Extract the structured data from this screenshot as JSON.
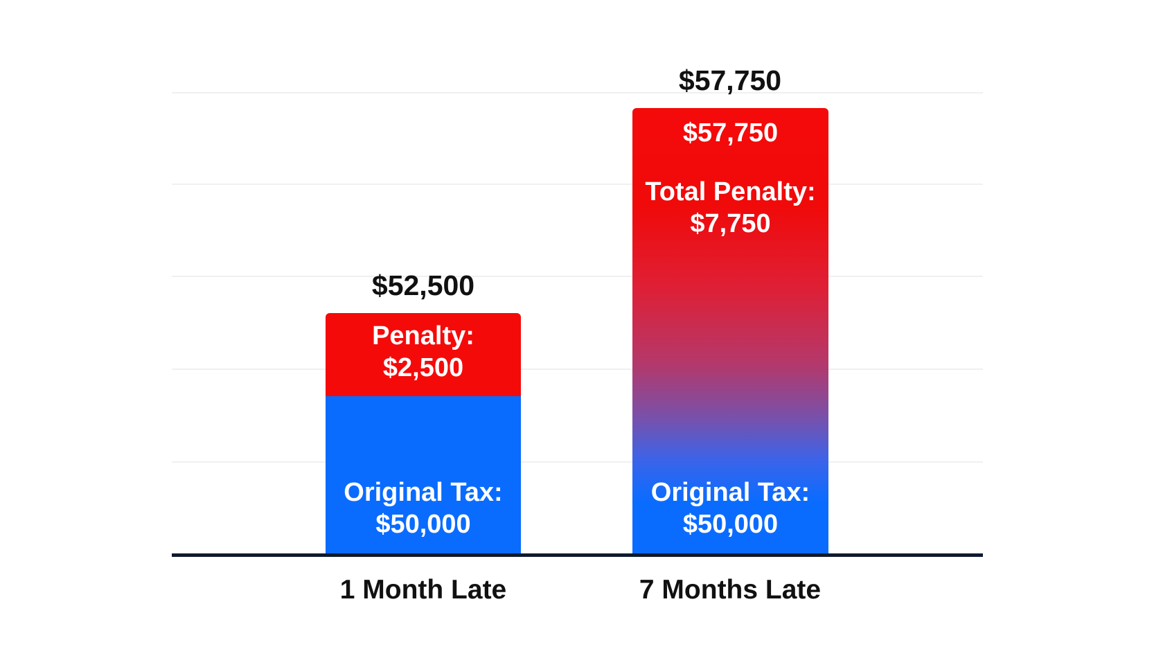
{
  "chart_data": {
    "type": "bar",
    "stacked": true,
    "categories": [
      "1 Month Late",
      "7 Months Late"
    ],
    "totals": [
      "$52,500",
      "$57,750"
    ],
    "bars": [
      {
        "total": 52500,
        "total_label": "$52,500",
        "original_tax_label": "Original Tax:",
        "original_tax_value": "$50,000",
        "original_tax": 50000,
        "penalty_label": "Penalty:",
        "penalty_value": "$2,500",
        "penalty": 2500
      },
      {
        "total": 57750,
        "total_label": "$57,750",
        "inner_total": "$57,750",
        "original_tax_label": "Original Tax:",
        "original_tax_value": "$50,000",
        "original_tax": 50000,
        "penalty_label": "Total Penalty:",
        "penalty_value": "$7,750",
        "penalty": 7750
      }
    ],
    "colors": {
      "original_tax": "#0a6cff",
      "penalty": "#f50a0a",
      "axis": "#0f1a2e"
    },
    "grid": true,
    "title": "",
    "xlabel": "",
    "ylabel": ""
  }
}
